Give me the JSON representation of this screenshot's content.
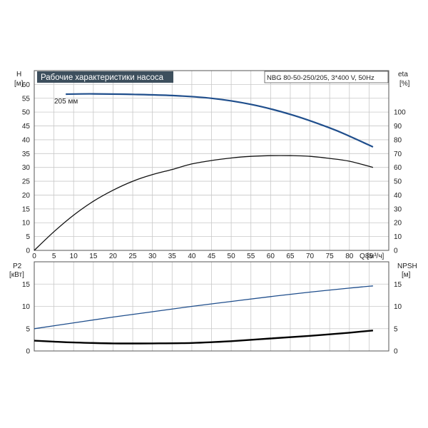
{
  "chart_data": [
    {
      "type": "line",
      "title": "Рабочие характеристики насоса",
      "subtitle": "NBG 80-50-250/205, 3*400 V, 50Hz",
      "xlabel": "Q [м³/ч]",
      "ylabel": "H",
      "ylabel_unit": "[м]",
      "y2label": "eta",
      "y2label_unit": "[%]",
      "xlim": [
        0,
        90
      ],
      "ylim": [
        0,
        65
      ],
      "y2lim": [
        0,
        130
      ],
      "xticks": [
        0,
        5,
        10,
        15,
        20,
        25,
        30,
        35,
        40,
        45,
        50,
        55,
        60,
        65,
        70,
        75,
        80,
        85
      ],
      "yticks": [
        0,
        5,
        10,
        15,
        20,
        25,
        30,
        35,
        40,
        45,
        50,
        55,
        60
      ],
      "y2ticks": [
        0,
        10,
        20,
        30,
        40,
        50,
        60,
        70,
        80,
        90,
        100
      ],
      "grid": true,
      "annotations": [
        {
          "text": "205 мм",
          "x": 8,
          "y": 57
        }
      ],
      "series": [
        {
          "axis": "left",
          "color": "#1f4e8c",
          "x": [
            8,
            15,
            25,
            35,
            45,
            55,
            65,
            75,
            80,
            86
          ],
          "values": [
            56.5,
            56.6,
            56.4,
            56.0,
            55.0,
            52.8,
            49.2,
            44.3,
            41.3,
            37.4
          ]
        },
        {
          "axis": "right",
          "color": "#111111",
          "x": [
            0,
            5,
            10,
            15,
            20,
            25,
            30,
            35,
            40,
            45,
            50,
            55,
            60,
            65,
            70,
            75,
            80,
            86
          ],
          "values": [
            0,
            13.5,
            25.5,
            35.5,
            43.5,
            50,
            54.8,
            58.5,
            62.5,
            65,
            66.8,
            68,
            68.5,
            68.5,
            68,
            66.5,
            64.5,
            60
          ]
        }
      ]
    },
    {
      "type": "line",
      "ylabel": "P2",
      "ylabel_unit": "[кВт]",
      "y2label": "NPSH",
      "y2label_unit": "[м]",
      "xlim": [
        0,
        90
      ],
      "ylim": [
        0,
        20
      ],
      "y2lim": [
        0,
        20
      ],
      "yticks": [
        0,
        5,
        10,
        15
      ],
      "y2ticks": [
        0,
        5,
        10,
        15
      ],
      "grid": true,
      "series": [
        {
          "axis": "left",
          "color": "#1f4e8c",
          "x": [
            0,
            10,
            20,
            30,
            40,
            50,
            60,
            70,
            80,
            86
          ],
          "values": [
            5.0,
            6.3,
            7.6,
            8.8,
            10.0,
            11.1,
            12.2,
            13.2,
            14.1,
            14.6
          ]
        },
        {
          "axis": "right",
          "color": "#000000",
          "x": [
            0,
            5,
            10,
            20,
            30,
            40,
            50,
            60,
            70,
            80,
            86
          ],
          "values": [
            2.3,
            2.1,
            1.9,
            1.7,
            1.7,
            1.8,
            2.2,
            2.8,
            3.4,
            4.1,
            4.6
          ]
        }
      ]
    }
  ]
}
